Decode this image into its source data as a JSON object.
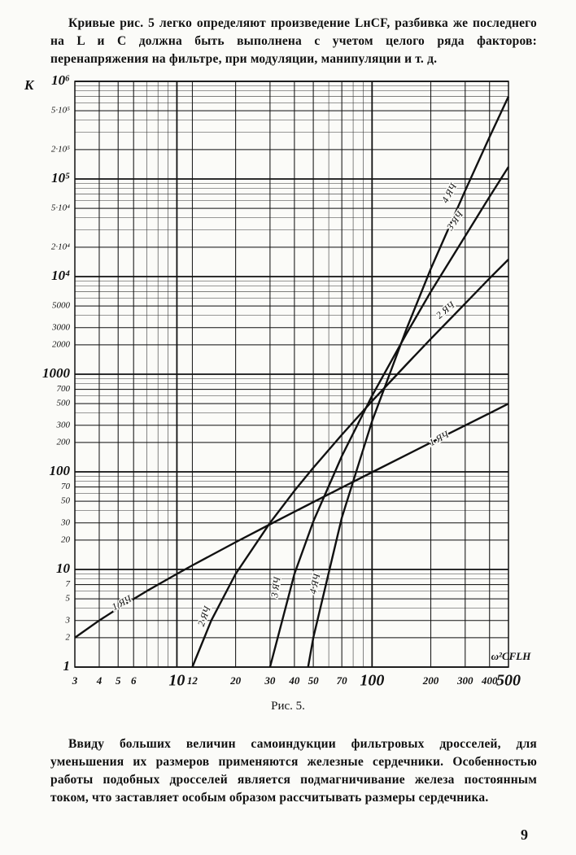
{
  "text_top": "Кривые рис. 5 легко определяют произведение LнCF, разбивка же последнего на L и C должна быть выполнена с учетом целого ряда факторов: перенапряжения на фильтре, при модуляции, манипуляции и т. д.",
  "chart_data": {
    "type": "line",
    "y_label": "K",
    "x_label": "ω²CFLH",
    "xscale": "log",
    "yscale": "log",
    "grid": true,
    "xlim": [
      3,
      500
    ],
    "ylim": [
      1,
      1000000
    ],
    "xticks": [
      3,
      4,
      5,
      6,
      10,
      12,
      20,
      30,
      40,
      50,
      70,
      100,
      200,
      300,
      400,
      500
    ],
    "yticks": [
      1,
      2,
      3,
      5,
      7,
      10,
      20,
      30,
      50,
      70,
      100,
      200,
      300,
      500,
      700,
      1000,
      2000,
      3000,
      5000,
      {
        "value": 10000,
        "label": "10⁴"
      },
      {
        "value": 20000,
        "label": "2·10⁴"
      },
      {
        "value": 50000,
        "label": "5·10⁴"
      },
      {
        "value": 100000,
        "label": "10⁵"
      },
      {
        "value": 200000,
        "label": "2·10⁵"
      },
      {
        "value": 500000,
        "label": "5·10⁵"
      },
      {
        "value": 1000000,
        "label": "10⁶"
      }
    ],
    "x": [
      3,
      4,
      5,
      7,
      10,
      12,
      15,
      20,
      30,
      40,
      47,
      50,
      70,
      100,
      150,
      200,
      300,
      400,
      500
    ],
    "series": [
      {
        "name": "1 ЯЧ",
        "color": "#111111",
        "values": [
          2,
          3,
          4,
          6,
          9,
          11,
          14,
          19,
          29,
          39,
          46,
          49,
          69,
          99,
          149,
          199,
          299,
          399,
          499
        ]
      },
      {
        "name": "2 ЯЧ",
        "color": "#111111",
        "values": [
          null,
          null,
          null,
          null,
          null,
          1,
          3,
          9,
          30,
          64,
          95,
          110,
          240,
          530,
          1260,
          2300,
          5300,
          9600,
          15000
        ]
      },
      {
        "name": "3 ЯЧ",
        "color": "#111111",
        "values": [
          null,
          null,
          null,
          null,
          null,
          null,
          null,
          null,
          1,
          9,
          22,
          31,
          145,
          600,
          2600,
          7000,
          26000,
          66000,
          133000
        ]
      },
      {
        "name": "4 ЯЧ",
        "color": "#111111",
        "values": [
          null,
          null,
          null,
          null,
          null,
          null,
          null,
          null,
          null,
          null,
          1,
          2,
          34,
          330,
          2900,
          12000,
          76000,
          270000,
          700000
        ]
      }
    ]
  },
  "caption": "Рис. 5.",
  "text_bottom": "Ввиду больших величин самоиндукции фильтровых дросселей, для уменьшения их размеров применяются железные сердечники. Особенностью работы подобных дросселей является подмагничивание железа постоянным током, что заставляет особым образом рассчитывать размеры сердечника.",
  "page_number": "9"
}
